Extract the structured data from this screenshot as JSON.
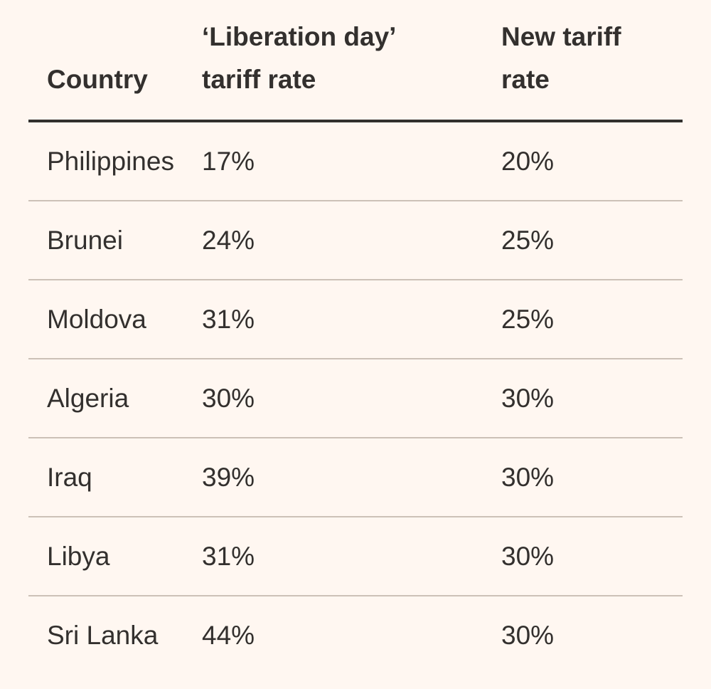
{
  "chart_data": {
    "type": "table",
    "columns": [
      "Country",
      "‘Liberation day’ tariff rate",
      "New tariff rate"
    ],
    "header_lines": [
      [
        "Country"
      ],
      [
        "‘Liberation day’",
        "tariff rate"
      ],
      [
        "New tariff",
        "rate"
      ]
    ],
    "rows": [
      [
        "Philippines",
        "17%",
        "20%"
      ],
      [
        "Brunei",
        "24%",
        "25%"
      ],
      [
        "Moldova",
        "31%",
        "25%"
      ],
      [
        "Algeria",
        "30%",
        "30%"
      ],
      [
        "Iraq",
        "39%",
        "30%"
      ],
      [
        "Libya",
        "31%",
        "30%"
      ],
      [
        "Sri Lanka",
        "44%",
        "30%"
      ]
    ]
  },
  "colors": {
    "background": "#FFF7F1",
    "text": "#33302E",
    "header_rule": "#33302E",
    "row_rule": "#CCC1B7"
  }
}
